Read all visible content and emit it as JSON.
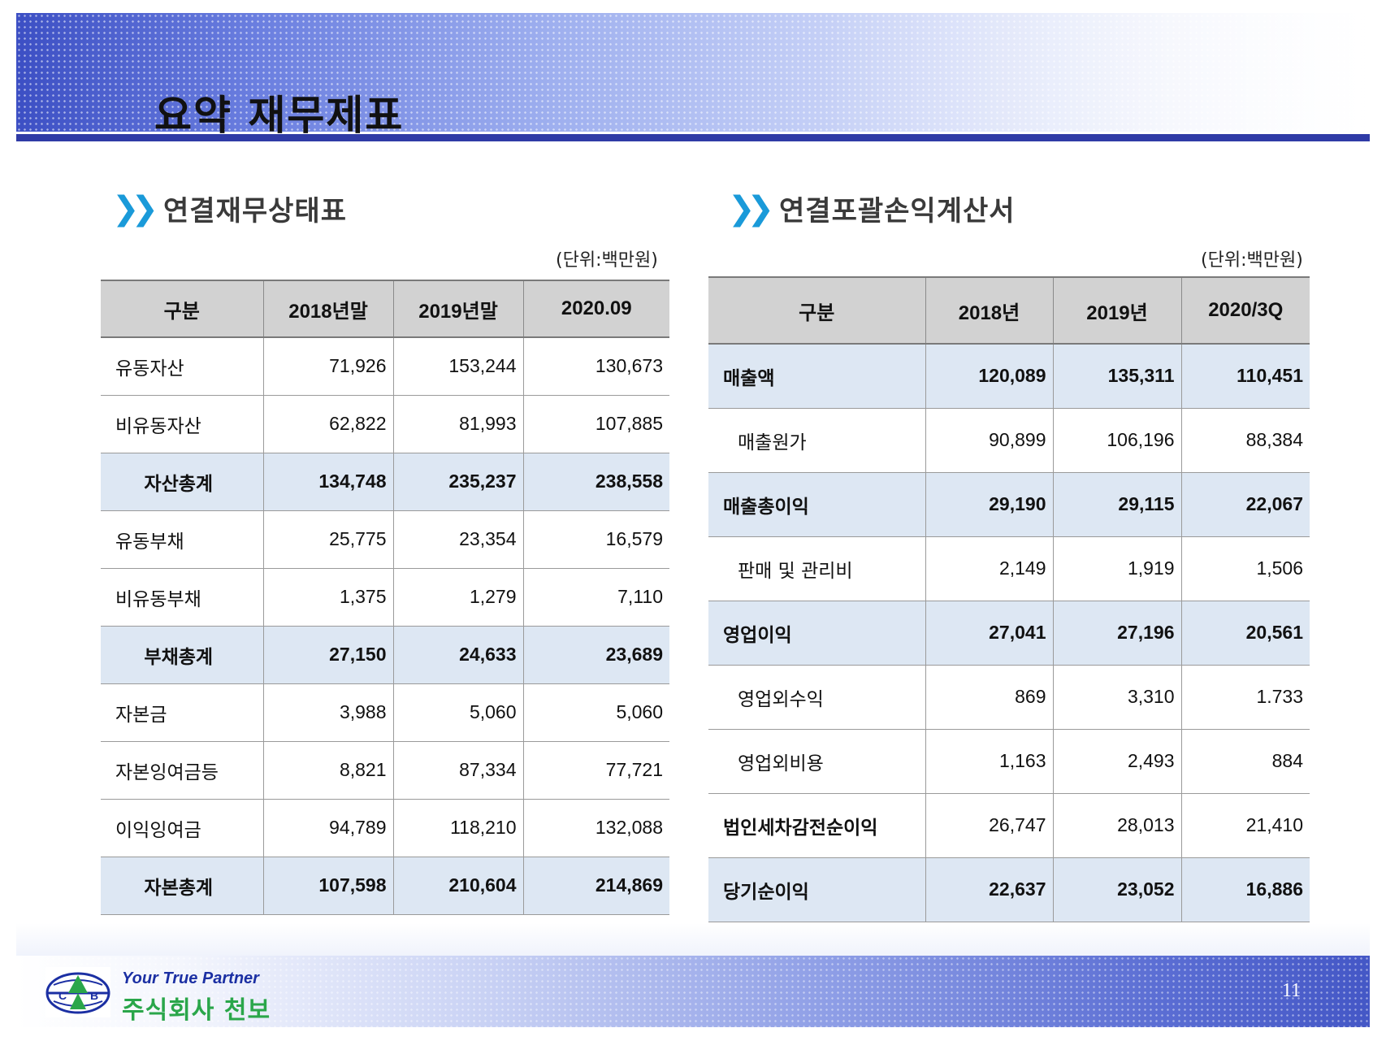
{
  "page": {
    "title": "요약  재무제표",
    "page_number": "11"
  },
  "balance_sheet": {
    "heading": "연결재무상태표",
    "unit": "(단위:백만원)",
    "headers": [
      "구분",
      "2018년말",
      "2019년말",
      "2020.09"
    ],
    "rows": [
      {
        "label": "유동자산",
        "values": [
          "71,926",
          "153,244",
          "130,673"
        ]
      },
      {
        "label": "비유동자산",
        "values": [
          "62,822",
          "81,993",
          "107,885"
        ]
      },
      {
        "label": "자산총계",
        "values": [
          "134,748",
          "235,237",
          "238,558"
        ]
      },
      {
        "label": "유동부채",
        "values": [
          "25,775",
          "23,354",
          "16,579"
        ]
      },
      {
        "label": "비유동부채",
        "values": [
          "1,375",
          "1,279",
          "7,110"
        ]
      },
      {
        "label": "부채총계",
        "values": [
          "27,150",
          "24,633",
          "23,689"
        ]
      },
      {
        "label": "자본금",
        "values": [
          "3,988",
          "5,060",
          "5,060"
        ]
      },
      {
        "label": "자본잉여금등",
        "values": [
          "8,821",
          "87,334",
          "77,721"
        ]
      },
      {
        "label": "이익잉여금",
        "values": [
          "94,789",
          "118,210",
          "132,088"
        ]
      },
      {
        "label": "자본총계",
        "values": [
          "107,598",
          "210,604",
          "214,869"
        ]
      }
    ]
  },
  "income_statement": {
    "heading": "연결포괄손익계산서",
    "unit": "(단위:백만원)",
    "headers": [
      "구분",
      "2018년",
      "2019년",
      "2020/3Q"
    ],
    "rows": [
      {
        "label": "매출액",
        "values": [
          "120,089",
          "135,311",
          "110,451"
        ]
      },
      {
        "label": "매출원가",
        "values": [
          "90,899",
          "106,196",
          "88,384"
        ]
      },
      {
        "label": "매출총이익",
        "values": [
          "29,190",
          "29,115",
          "22,067"
        ]
      },
      {
        "label": "판매 및 관리비",
        "values": [
          "2,149",
          "1,919",
          "1,506"
        ]
      },
      {
        "label": "영업이익",
        "values": [
          "27,041",
          "27,196",
          "20,561"
        ]
      },
      {
        "label": "영업외수익",
        "values": [
          "869",
          "3,310",
          "1.733"
        ]
      },
      {
        "label": "영업외비용",
        "values": [
          "1,163",
          "2,493",
          "884"
        ]
      },
      {
        "label": "법인세차감전순이익",
        "values": [
          "26,747",
          "28,013",
          "21,410"
        ]
      },
      {
        "label": "당기순이익",
        "values": [
          "22,637",
          "23,052",
          "16,886"
        ]
      }
    ]
  },
  "footer": {
    "tagline": "Your True Partner",
    "company": "주식회사 천보",
    "logo_letters": [
      "C",
      "B"
    ]
  },
  "colors": {
    "header_blue": "#2f3ba6",
    "accent_chevron": "#1a9ad9",
    "table_header_gray": "#d2d2d2",
    "total_row_blue": "#dde7f3",
    "company_green": "#2aa64a",
    "tagline_blue": "#1b2fa3"
  }
}
